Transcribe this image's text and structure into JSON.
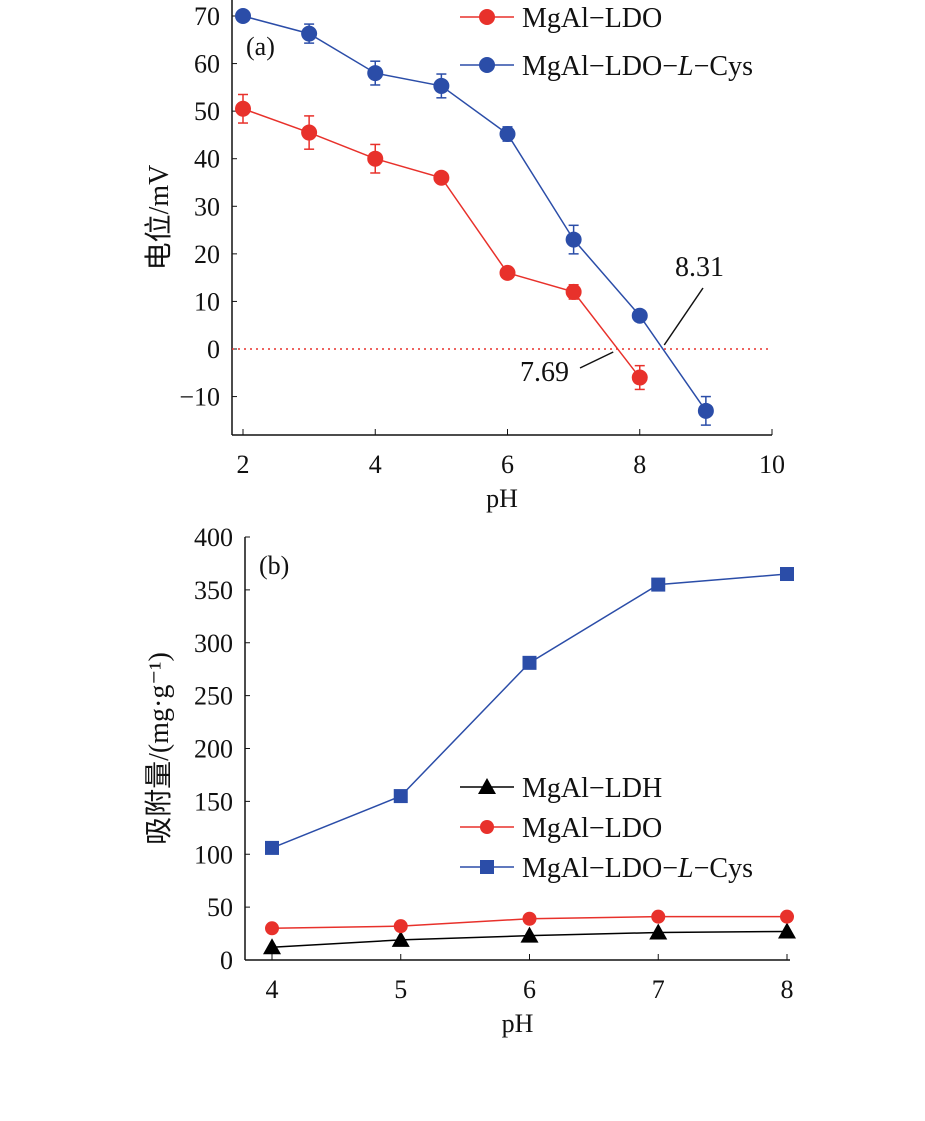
{
  "chart_data": [
    {
      "type": "line",
      "panel_label": "(a)",
      "xlabel": "pH",
      "ylabel": "电位/mV",
      "xlim": [
        1.83,
        10
      ],
      "ylim": [
        -18,
        73
      ],
      "xticks": [
        2,
        4,
        6,
        8,
        10
      ],
      "yticks": [
        -10,
        0,
        10,
        20,
        30,
        40,
        50,
        60,
        70
      ],
      "zero_line": 0,
      "series": [
        {
          "name": "MgAl−LDO",
          "color": "#e8312b",
          "marker": "circle",
          "x": [
            2,
            3,
            4,
            5,
            6,
            7,
            8
          ],
          "values": [
            50.5,
            45.5,
            40,
            36,
            16,
            12,
            -6
          ],
          "error": [
            3,
            3.5,
            3,
            0.5,
            1,
            1.5,
            2.5
          ]
        },
        {
          "name": "MgAl−LDO−L−Cys",
          "color": "#2b4da8",
          "marker": "circle",
          "x": [
            2,
            3,
            4,
            5,
            6,
            7,
            8,
            9
          ],
          "values": [
            70,
            66.3,
            58,
            55.3,
            45.2,
            23,
            7,
            -13
          ],
          "error": [
            1,
            2,
            2.5,
            2.5,
            1.5,
            3,
            0.5,
            3
          ]
        }
      ],
      "annotations": [
        {
          "text": "7.69",
          "x": 7.69
        },
        {
          "text": "8.31",
          "x": 8.31
        }
      ],
      "legend": "top-right"
    },
    {
      "type": "line",
      "panel_label": "(b)",
      "xlabel": "pH",
      "ylabel": "吸附量/(mg·g⁻¹)",
      "xlim": [
        3.9,
        8
      ],
      "ylim": [
        0,
        400
      ],
      "xticks": [
        4,
        5,
        6,
        7,
        8
      ],
      "yticks": [
        0,
        50,
        100,
        150,
        200,
        250,
        300,
        350,
        400
      ],
      "series": [
        {
          "name": "MgAl−LDH",
          "color": "#000000",
          "marker": "triangle",
          "x": [
            4,
            5,
            6,
            7,
            8
          ],
          "values": [
            12,
            19,
            23,
            26,
            27
          ]
        },
        {
          "name": "MgAl−LDO",
          "color": "#e8312b",
          "marker": "circle",
          "x": [
            4,
            5,
            6,
            7,
            8
          ],
          "values": [
            30,
            32,
            39,
            41,
            41
          ]
        },
        {
          "name": "MgAl−LDO−L−Cys",
          "color": "#2b4da8",
          "marker": "square",
          "x": [
            4,
            5,
            6,
            7,
            8
          ],
          "values": [
            106,
            155,
            281,
            355,
            365
          ]
        }
      ],
      "legend": "center-right"
    }
  ]
}
